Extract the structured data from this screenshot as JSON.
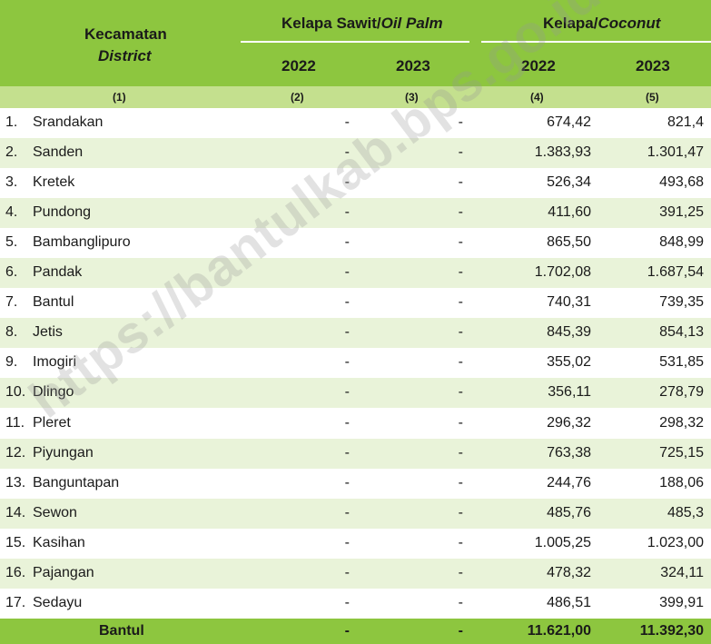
{
  "header": {
    "district_label": "Kecamatan",
    "district_label_en": "District",
    "oil_palm_label": "Kelapa Sawit/",
    "oil_palm_label_en": "Oil Palm",
    "coconut_label": "Kelapa/",
    "coconut_label_en": "Coconut",
    "years": [
      "2022",
      "2023",
      "2022",
      "2023"
    ]
  },
  "column_numbers": [
    "(1)",
    "(2)",
    "(3)",
    "(4)",
    "(5)"
  ],
  "rows": [
    {
      "no": "1.",
      "name": "Srandakan",
      "op2022": "-",
      "op2023": "-",
      "c2022": "674,42",
      "c2023": "821,4"
    },
    {
      "no": "2.",
      "name": "Sanden",
      "op2022": "-",
      "op2023": "-",
      "c2022": "1.383,93",
      "c2023": "1.301,47"
    },
    {
      "no": "3.",
      "name": "Kretek",
      "op2022": "-",
      "op2023": "-",
      "c2022": "526,34",
      "c2023": "493,68"
    },
    {
      "no": "4.",
      "name": "Pundong",
      "op2022": "-",
      "op2023": "-",
      "c2022": "411,60",
      "c2023": "391,25"
    },
    {
      "no": "5.",
      "name": "Bambanglipuro",
      "op2022": "-",
      "op2023": "-",
      "c2022": "865,50",
      "c2023": "848,99"
    },
    {
      "no": "6.",
      "name": "Pandak",
      "op2022": "-",
      "op2023": "-",
      "c2022": "1.702,08",
      "c2023": "1.687,54"
    },
    {
      "no": "7.",
      "name": "Bantul",
      "op2022": "-",
      "op2023": "-",
      "c2022": "740,31",
      "c2023": "739,35"
    },
    {
      "no": "8.",
      "name": "Jetis",
      "op2022": "-",
      "op2023": "-",
      "c2022": "845,39",
      "c2023": "854,13"
    },
    {
      "no": "9.",
      "name": "Imogiri",
      "op2022": "-",
      "op2023": "-",
      "c2022": "355,02",
      "c2023": "531,85"
    },
    {
      "no": "10.",
      "name": "Dlingo",
      "op2022": "-",
      "op2023": "-",
      "c2022": "356,11",
      "c2023": "278,79"
    },
    {
      "no": "11.",
      "name": "Pleret",
      "op2022": "-",
      "op2023": "-",
      "c2022": "296,32",
      "c2023": "298,32"
    },
    {
      "no": "12.",
      "name": "Piyungan",
      "op2022": "-",
      "op2023": "-",
      "c2022": "763,38",
      "c2023": "725,15"
    },
    {
      "no": "13.",
      "name": "Banguntapan",
      "op2022": "-",
      "op2023": "-",
      "c2022": "244,76",
      "c2023": "188,06"
    },
    {
      "no": "14.",
      "name": "Sewon",
      "op2022": "-",
      "op2023": "-",
      "c2022": "485,76",
      "c2023": "485,3"
    },
    {
      "no": "15.",
      "name": "Kasihan",
      "op2022": "-",
      "op2023": "-",
      "c2022": "1.005,25",
      "c2023": "1.023,00"
    },
    {
      "no": "16.",
      "name": "Pajangan",
      "op2022": "-",
      "op2023": "-",
      "c2022": "478,32",
      "c2023": "324,11"
    },
    {
      "no": "17.",
      "name": "Sedayu",
      "op2022": "-",
      "op2023": "-",
      "c2022": "486,51",
      "c2023": "399,91"
    }
  ],
  "total": {
    "name": "Bantul",
    "op2022": "-",
    "op2023": "-",
    "c2022": "11.621,00",
    "c2023": "11.392,30"
  },
  "watermark": "https://bantulkab.bps.go.id",
  "colors": {
    "header_green": "#8dc63f",
    "subheader_green": "#c4e08e",
    "stripe": "#e9f3d9"
  }
}
